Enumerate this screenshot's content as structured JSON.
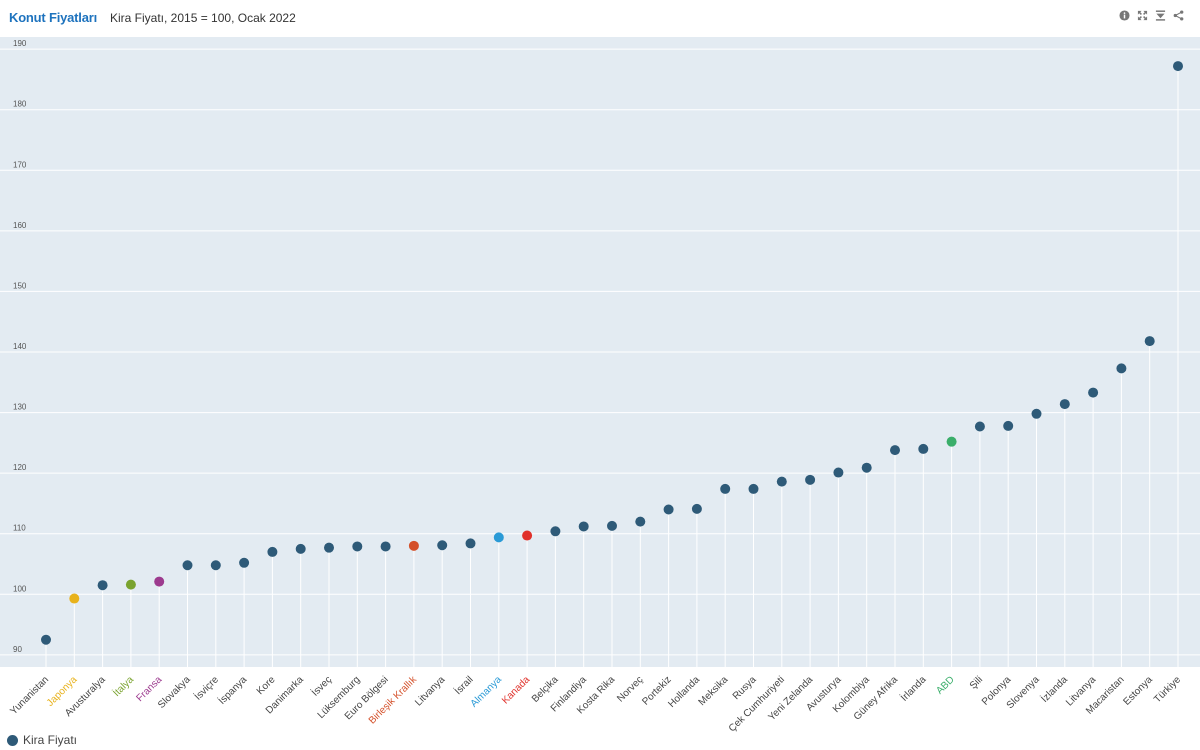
{
  "header": {
    "brand": "Konut Fiyatları",
    "subtitle": "Kira Fiyatı, 2015 = 100, Ocak 2022"
  },
  "toolbar": {
    "icons": [
      "info-icon",
      "fullscreen-icon",
      "download-icon",
      "share-icon"
    ]
  },
  "legend": {
    "label": "Kira Fiyatı",
    "color": "#2e5a78"
  },
  "colors": {
    "plot_background": "#e3ebf2",
    "default_point": "#2e5a78",
    "stem": "#ffffff",
    "tick_label": "#555555"
  },
  "chart_data": {
    "type": "scatter",
    "title": "",
    "xlabel": "",
    "ylabel": "",
    "ylim": [
      88,
      192
    ],
    "yticks": [
      90,
      100,
      110,
      120,
      130,
      140,
      150,
      160,
      170,
      180,
      190
    ],
    "grid": "horizontal",
    "legend_position": "bottom-left",
    "categories": [
      "Yunanistan",
      "Japonya",
      "Avusturalya",
      "İtalya",
      "Fransa",
      "Slovakya",
      "İsviçre",
      "İspanya",
      "Kore",
      "Danimarka",
      "İsveç",
      "Lüksemburg",
      "Euro Bölgesi",
      "Birleşik Krallık",
      "Litvanya",
      "İsrail",
      "Almanya",
      "Kanada",
      "Belçika",
      "Finlandiya",
      "Kosta Rika",
      "Norveç",
      "Portekiz",
      "Hollanda",
      "Meksika",
      "Rusya",
      "Çek Cumhuriyeti",
      "Yeni Zelanda",
      "Avusturya",
      "Kolombiya",
      "Güney Afrika",
      "İrlanda",
      "ABD",
      "Şili",
      "Polonya",
      "Slovenya",
      "İzlanda",
      "Litvanya",
      "Macaristan",
      "Estonya",
      "Türkiye"
    ],
    "series": [
      {
        "name": "Kira Fiyatı",
        "values": [
          92.5,
          99.3,
          101.5,
          101.6,
          102.1,
          104.8,
          104.8,
          105.2,
          107.0,
          107.5,
          107.7,
          107.9,
          107.9,
          108.0,
          108.1,
          108.4,
          109.4,
          109.7,
          110.4,
          111.2,
          111.3,
          112.0,
          114.0,
          114.1,
          117.4,
          117.4,
          118.6,
          118.9,
          120.1,
          120.9,
          123.8,
          124.0,
          125.2,
          127.7,
          127.8,
          129.8,
          131.4,
          133.3,
          137.3,
          141.8,
          187.2
        ]
      }
    ],
    "point_colors": [
      "#2e5a78",
      "#e8b21b",
      "#2e5a78",
      "#7aa32f",
      "#9c3a8e",
      "#2e5a78",
      "#2e5a78",
      "#2e5a78",
      "#2e5a78",
      "#2e5a78",
      "#2e5a78",
      "#2e5a78",
      "#2e5a78",
      "#d4502a",
      "#2e5a78",
      "#2e5a78",
      "#2a9ad6",
      "#e0302a",
      "#2e5a78",
      "#2e5a78",
      "#2e5a78",
      "#2e5a78",
      "#2e5a78",
      "#2e5a78",
      "#2e5a78",
      "#2e5a78",
      "#2e5a78",
      "#2e5a78",
      "#2e5a78",
      "#2e5a78",
      "#2e5a78",
      "#2e5a78",
      "#3aae6a",
      "#2e5a78",
      "#2e5a78",
      "#2e5a78",
      "#2e5a78",
      "#2e5a78",
      "#2e5a78",
      "#2e5a78",
      "#2e5a78"
    ],
    "label_colors": [
      "#444444",
      "#e8b21b",
      "#444444",
      "#7aa32f",
      "#9c3a8e",
      "#444444",
      "#444444",
      "#444444",
      "#444444",
      "#444444",
      "#444444",
      "#444444",
      "#444444",
      "#d4502a",
      "#444444",
      "#444444",
      "#2a9ad6",
      "#e0302a",
      "#444444",
      "#444444",
      "#444444",
      "#444444",
      "#444444",
      "#444444",
      "#444444",
      "#444444",
      "#444444",
      "#444444",
      "#444444",
      "#444444",
      "#444444",
      "#444444",
      "#3aae6a",
      "#444444",
      "#444444",
      "#444444",
      "#444444",
      "#444444",
      "#444444",
      "#444444",
      "#444444"
    ]
  }
}
